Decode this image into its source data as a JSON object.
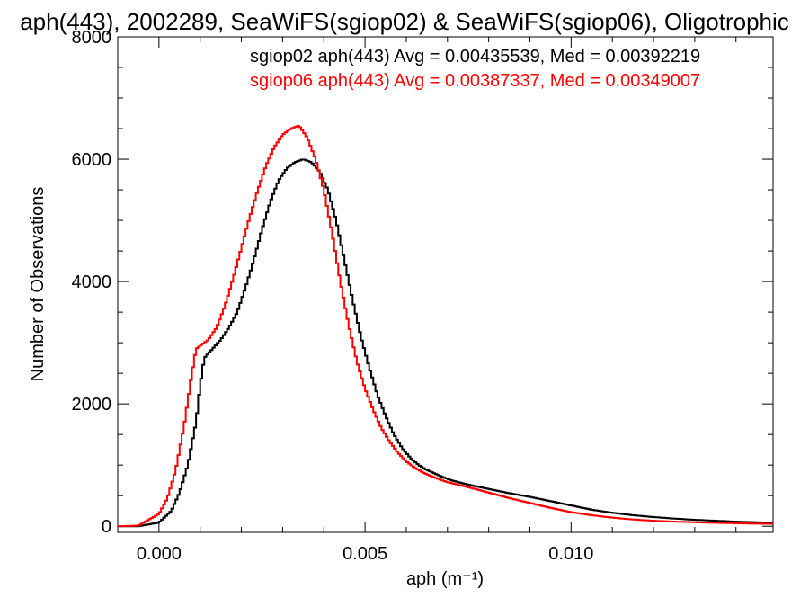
{
  "chart_data": {
    "type": "line",
    "title": "aph(443), 2002289, SeaWiFS(sgiop02) & SeaWiFS(sgiop06), Oligotrophic",
    "xlabel": "aph (m⁻¹)",
    "ylabel": "Number of Observations",
    "xlim": [
      -0.001,
      0.0149
    ],
    "ylim": [
      -100,
      8000
    ],
    "x_ticks": [
      {
        "value": 0.0,
        "label": "0.000"
      },
      {
        "value": 0.005,
        "label": "0.005"
      },
      {
        "value": 0.01,
        "label": "0.010"
      }
    ],
    "y_ticks": [
      {
        "value": 0,
        "label": "0"
      },
      {
        "value": 2000,
        "label": "2000"
      },
      {
        "value": 4000,
        "label": "4000"
      },
      {
        "value": 6000,
        "label": "6000"
      },
      {
        "value": 8000,
        "label": "8000"
      }
    ],
    "legend_position": "top-right",
    "grid": false,
    "series": [
      {
        "name": "sgiop02 aph(443) Avg = 0.00435539, Med = 0.00392219",
        "color": "#000000",
        "x": [
          -0.001,
          -0.0005,
          0.0,
          0.0003,
          0.0005,
          0.0007,
          0.0009,
          0.001,
          0.0011,
          0.0013,
          0.0015,
          0.0017,
          0.0019,
          0.0021,
          0.0023,
          0.0025,
          0.0027,
          0.0029,
          0.0031,
          0.0033,
          0.0035,
          0.0037,
          0.0039,
          0.0041,
          0.0043,
          0.0045,
          0.0047,
          0.0049,
          0.0051,
          0.0053,
          0.0055,
          0.0057,
          0.0059,
          0.0061,
          0.0063,
          0.0065,
          0.0067,
          0.0069,
          0.0071,
          0.0075,
          0.008,
          0.0085,
          0.009,
          0.0095,
          0.01,
          0.0105,
          0.011,
          0.0115,
          0.012,
          0.0125,
          0.013,
          0.0135,
          0.014,
          0.0145,
          0.0149
        ],
        "y": [
          0,
          0,
          60,
          250,
          550,
          1000,
          1700,
          2300,
          2750,
          2900,
          3050,
          3250,
          3500,
          3900,
          4350,
          4850,
          5300,
          5650,
          5850,
          5950,
          6000,
          5950,
          5800,
          5500,
          5000,
          4350,
          3700,
          3100,
          2600,
          2150,
          1800,
          1500,
          1280,
          1120,
          1000,
          920,
          860,
          800,
          750,
          680,
          610,
          540,
          480,
          410,
          340,
          270,
          220,
          180,
          150,
          125,
          105,
          90,
          75,
          65,
          55
        ]
      },
      {
        "name": "sgiop06 aph(443) Avg = 0.00387337, Med = 0.00349007",
        "color": "#ff0000",
        "x": [
          -0.001,
          -0.0005,
          0.0,
          0.0002,
          0.0004,
          0.0006,
          0.0008,
          0.0009,
          0.001,
          0.0012,
          0.0014,
          0.0016,
          0.0018,
          0.002,
          0.0022,
          0.0024,
          0.0026,
          0.0028,
          0.003,
          0.0032,
          0.0034,
          0.0036,
          0.0038,
          0.004,
          0.0042,
          0.0044,
          0.0046,
          0.0048,
          0.005,
          0.0052,
          0.0054,
          0.0056,
          0.0058,
          0.006,
          0.0062,
          0.0064,
          0.0066,
          0.0068,
          0.007,
          0.0075,
          0.008,
          0.0085,
          0.009,
          0.0095,
          0.01,
          0.0105,
          0.011,
          0.0115,
          0.012,
          0.0125,
          0.013,
          0.0135,
          0.014,
          0.0145,
          0.0149
        ],
        "y": [
          0,
          10,
          200,
          450,
          900,
          1600,
          2500,
          2900,
          2950,
          3050,
          3250,
          3600,
          4050,
          4550,
          5050,
          5500,
          5900,
          6200,
          6400,
          6500,
          6550,
          6350,
          6000,
          5500,
          4800,
          4000,
          3300,
          2700,
          2250,
          1900,
          1600,
          1380,
          1200,
          1060,
          960,
          880,
          820,
          770,
          720,
          640,
          550,
          460,
          380,
          300,
          230,
          180,
          140,
          110,
          90,
          75,
          65,
          55,
          48,
          42,
          38
        ]
      }
    ]
  }
}
